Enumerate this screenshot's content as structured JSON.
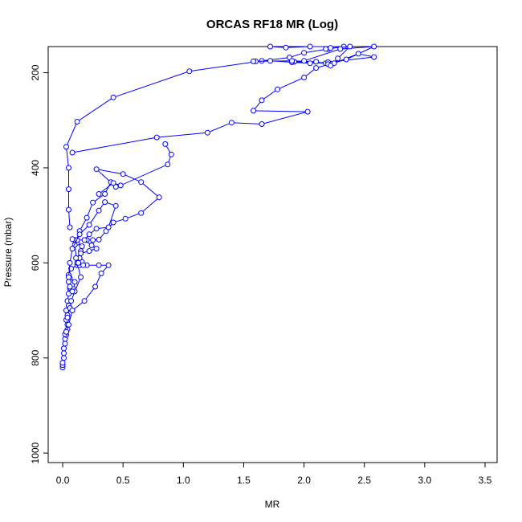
{
  "chart_data": {
    "type": "scatter",
    "title": "ORCAS RF18 MR (Log)",
    "xlabel": "MR",
    "ylabel": "Pressure (mbar)",
    "xlim": [
      -0.12,
      3.6
    ],
    "ylim": [
      1020,
      145
    ],
    "y_reversed": true,
    "x_ticks": [
      "0.0",
      "0.5",
      "1.0",
      "1.5",
      "2.0",
      "2.5",
      "3.0",
      "3.5"
    ],
    "x_tick_values": [
      0,
      0.5,
      1.0,
      1.5,
      2.0,
      2.5,
      3.0,
      3.5
    ],
    "y_ticks": [
      "200",
      "400",
      "600",
      "800",
      "1000"
    ],
    "y_tick_values": [
      200,
      400,
      600,
      800,
      1000
    ],
    "grid": false,
    "legend": "none",
    "colors": {
      "series": "#0000ff",
      "axis": "#000000"
    },
    "series": [
      {
        "points": [
          [
            0.0,
            820
          ],
          [
            0.0,
            815
          ],
          [
            0.0,
            810
          ],
          [
            0.01,
            800
          ],
          [
            0.01,
            790
          ],
          [
            0.01,
            780
          ],
          [
            0.02,
            770
          ],
          [
            0.02,
            760
          ],
          [
            0.03,
            752
          ],
          [
            0.02,
            750
          ],
          [
            0.03,
            745
          ],
          [
            0.04,
            740
          ],
          [
            0.04,
            730
          ],
          [
            0.03,
            720
          ],
          [
            0.04,
            710
          ],
          [
            0.03,
            700
          ],
          [
            0.05,
            690
          ],
          [
            0.04,
            680
          ],
          [
            0.05,
            665
          ],
          [
            0.06,
            655
          ],
          [
            0.07,
            655
          ],
          [
            0.09,
            655
          ],
          [
            0.1,
            640
          ],
          [
            0.06,
            632
          ],
          [
            0.05,
            625
          ],
          [
            0.07,
            612
          ],
          [
            0.12,
            605
          ],
          [
            0.14,
            605
          ],
          [
            0.16,
            598
          ],
          [
            0.14,
            590
          ],
          [
            0.15,
            575
          ],
          [
            0.16,
            565
          ],
          [
            0.12,
            558
          ],
          [
            0.1,
            552
          ],
          [
            0.08,
            550
          ],
          [
            0.12,
            552
          ],
          [
            0.2,
            552
          ],
          [
            0.25,
            552
          ],
          [
            0.3,
            551
          ],
          [
            0.36,
            533
          ],
          [
            0.42,
            515
          ],
          [
            0.52,
            507
          ],
          [
            0.65,
            495
          ],
          [
            0.8,
            462
          ],
          [
            0.65,
            430
          ],
          [
            0.5,
            413
          ],
          [
            0.28,
            403
          ],
          [
            0.44,
            440
          ],
          [
            0.4,
            430
          ],
          [
            0.35,
            455
          ],
          [
            0.25,
            473
          ],
          [
            0.2,
            505
          ],
          [
            0.14,
            533
          ],
          [
            0.1,
            562
          ],
          [
            0.12,
            600
          ],
          [
            0.15,
            630
          ],
          [
            0.1,
            660
          ],
          [
            0.07,
            680
          ],
          [
            0.06,
            695
          ],
          [
            0.04,
            715
          ],
          [
            0.03,
            745
          ]
        ]
      },
      {
        "points": [
          [
            0.03,
            745
          ],
          [
            0.05,
            730
          ],
          [
            0.08,
            700
          ],
          [
            0.18,
            680
          ],
          [
            0.27,
            650
          ],
          [
            0.32,
            622
          ],
          [
            0.38,
            605
          ],
          [
            0.3,
            605
          ],
          [
            0.2,
            605
          ],
          [
            0.17,
            605
          ],
          [
            0.13,
            600
          ],
          [
            0.11,
            590
          ],
          [
            0.15,
            580
          ],
          [
            0.22,
            575
          ],
          [
            0.28,
            570
          ],
          [
            0.24,
            563
          ],
          [
            0.18,
            552
          ],
          [
            0.22,
            540
          ],
          [
            0.28,
            528
          ],
          [
            0.38,
            525
          ],
          [
            0.44,
            480
          ],
          [
            0.35,
            472
          ],
          [
            0.3,
            490
          ],
          [
            0.22,
            520
          ],
          [
            0.14,
            540
          ],
          [
            0.08,
            570
          ],
          [
            0.06,
            600
          ],
          [
            0.05,
            630
          ],
          [
            0.05,
            640
          ],
          [
            0.06,
            650
          ],
          [
            0.08,
            660
          ]
        ]
      },
      {
        "points": [
          [
            0.06,
            525
          ],
          [
            0.05,
            488
          ],
          [
            0.05,
            445
          ],
          [
            0.05,
            400
          ],
          [
            0.03,
            356
          ],
          [
            0.12,
            303
          ],
          [
            0.42,
            252
          ],
          [
            1.05,
            197
          ],
          [
            1.65,
            175
          ],
          [
            1.88,
            168
          ],
          [
            2.0,
            158
          ],
          [
            2.2,
            150
          ],
          [
            2.33,
            145
          ],
          [
            2.05,
            145
          ],
          [
            1.85,
            147
          ],
          [
            1.72,
            145
          ]
        ]
      },
      {
        "points": [
          [
            0.08,
            368
          ],
          [
            0.78,
            336
          ],
          [
            1.2,
            326
          ],
          [
            1.4,
            305
          ],
          [
            1.65,
            308
          ],
          [
            2.03,
            282
          ],
          [
            1.58,
            280
          ],
          [
            1.65,
            258
          ],
          [
            1.78,
            235
          ],
          [
            2.0,
            210
          ],
          [
            2.1,
            190
          ],
          [
            2.35,
            172
          ],
          [
            2.58,
            145
          ],
          [
            2.3,
            150
          ],
          [
            2.0,
            175
          ],
          [
            1.92,
            177
          ],
          [
            2.18,
            180
          ],
          [
            2.22,
            181
          ],
          [
            2.25,
            180
          ],
          [
            2.45,
            160
          ],
          [
            2.58,
            167
          ],
          [
            2.2,
            178
          ],
          [
            2.05,
            180
          ],
          [
            1.9,
            178
          ],
          [
            1.72,
            175
          ],
          [
            1.6,
            176
          ],
          [
            1.58,
            176
          ],
          [
            1.9,
            175
          ],
          [
            2.1,
            177
          ],
          [
            2.2,
            182
          ],
          [
            2.22,
            185
          ],
          [
            2.28,
            170
          ],
          [
            2.38,
            145
          ],
          [
            2.22,
            148
          ],
          [
            2.18,
            150
          ]
        ]
      },
      {
        "points": [
          [
            0.85,
            350
          ],
          [
            0.9,
            372
          ],
          [
            0.87,
            393
          ],
          [
            0.48,
            437
          ],
          [
            0.42,
            432
          ],
          [
            0.3,
            455
          ]
        ]
      }
    ]
  }
}
